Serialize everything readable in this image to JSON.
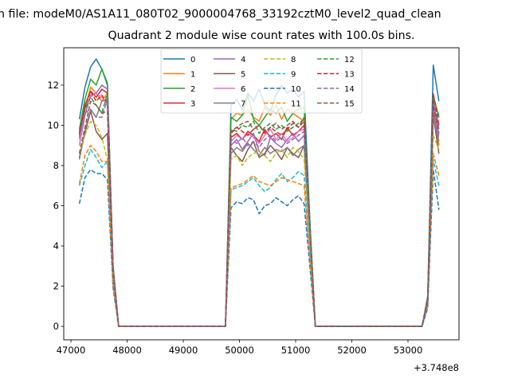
{
  "chart_data": {
    "type": "line",
    "suptitle": "n file: modeM0/AS1A11_080T02_9000004768_33192cztM0_level2_quad_clean",
    "title": "Quadrant 2 module wise count rates with 100.0s bins.",
    "xlabel": "",
    "ylabel": "",
    "x_offset_label": "+3.748e8",
    "xlim": [
      46872,
      53908
    ],
    "ylim": [
      -0.67,
      13.86
    ],
    "xticks": [
      47000,
      48000,
      49000,
      50000,
      51000,
      52000,
      53000
    ],
    "yticks": [
      0,
      2,
      4,
      6,
      8,
      10,
      12
    ],
    "grid": false,
    "legend_placement": "upper-center",
    "legend_columns": 4,
    "bins": {
      "start": 47150,
      "step": 100,
      "count": 65,
      "fill_value": 0
    },
    "nonzero_x": [
      47150,
      47250,
      47350,
      47450,
      47550,
      47650,
      47750,
      49850,
      49950,
      50050,
      50150,
      50250,
      50350,
      50450,
      50550,
      50650,
      50750,
      50850,
      50950,
      51050,
      51150,
      51250,
      53350,
      53450,
      53550
    ],
    "series": [
      {
        "name": "0",
        "color": "#1f77b4",
        "dashed": false,
        "values": [
          10.3,
          11.9,
          12.9,
          13.3,
          12.8,
          12.0,
          3.0,
          11.0,
          11.3,
          10.8,
          11.6,
          11.2,
          11.8,
          11.0,
          10.7,
          11.5,
          12.0,
          11.6,
          11.8,
          11.4,
          11.7,
          5.5,
          1.5,
          13.0,
          11.2
        ]
      },
      {
        "name": "1",
        "color": "#ff7f0e",
        "dashed": false,
        "values": [
          9.3,
          10.8,
          11.9,
          11.6,
          11.2,
          11.6,
          2.9,
          10.3,
          10.6,
          10.5,
          10.8,
          10.4,
          10.2,
          10.9,
          10.5,
          11.0,
          10.3,
          10.8,
          10.6,
          10.4,
          10.2,
          5.0,
          1.2,
          10.8,
          9.0
        ]
      },
      {
        "name": "2",
        "color": "#2ca02c",
        "dashed": false,
        "values": [
          9.8,
          11.3,
          12.3,
          12.0,
          12.8,
          12.1,
          3.0,
          10.4,
          10.2,
          10.5,
          11.5,
          10.3,
          10.0,
          10.4,
          10.8,
          10.6,
          10.9,
          10.2,
          10.6,
          10.8,
          10.9,
          5.3,
          1.4,
          11.5,
          10.4
        ]
      },
      {
        "name": "3",
        "color": "#d62728",
        "dashed": false,
        "values": [
          9.5,
          11.0,
          11.7,
          11.4,
          11.8,
          11.6,
          2.9,
          9.4,
          9.6,
          9.3,
          9.7,
          9.5,
          9.2,
          9.8,
          9.4,
          9.6,
          9.3,
          9.9,
          9.5,
          9.7,
          10.0,
          4.9,
          1.3,
          11.0,
          10.0
        ]
      },
      {
        "name": "4",
        "color": "#9467bd",
        "dashed": false,
        "values": [
          9.0,
          10.5,
          11.5,
          11.6,
          12.0,
          11.8,
          2.9,
          9.0,
          9.3,
          8.8,
          9.2,
          9.6,
          8.7,
          8.5,
          9.4,
          9.1,
          8.9,
          9.3,
          9.6,
          9.2,
          9.5,
          4.7,
          1.4,
          11.2,
          9.8
        ]
      },
      {
        "name": "5",
        "color": "#8c564b",
        "dashed": false,
        "values": [
          8.4,
          9.6,
          10.7,
          9.7,
          9.3,
          9.6,
          2.5,
          8.9,
          8.5,
          8.2,
          8.8,
          9.2,
          8.4,
          8.6,
          9.0,
          8.7,
          8.3,
          8.9,
          8.6,
          8.4,
          9.0,
          4.5,
          1.2,
          10.5,
          8.6
        ]
      },
      {
        "name": "6",
        "color": "#e377c2",
        "dashed": false,
        "values": [
          9.0,
          10.8,
          11.4,
          11.6,
          11.4,
          11.0,
          2.8,
          9.2,
          9.5,
          9.3,
          9.6,
          9.4,
          9.1,
          9.5,
          9.8,
          9.3,
          9.6,
          9.2,
          9.4,
          9.7,
          9.8,
          4.9,
          1.3,
          10.9,
          9.5
        ]
      },
      {
        "name": "7",
        "color": "#7f7f7f",
        "dashed": false,
        "values": [
          8.3,
          9.7,
          10.8,
          10.4,
          11.2,
          11.3,
          2.8,
          8.6,
          8.9,
          8.7,
          9.1,
          8.8,
          8.5,
          8.9,
          8.6,
          8.8,
          8.7,
          8.9,
          8.5,
          8.8,
          9.0,
          4.5,
          1.2,
          10.4,
          9.2
        ]
      },
      {
        "name": "8",
        "color": "#bcbd22",
        "dashed": true,
        "values": [
          8.6,
          9.5,
          10.2,
          10.0,
          9.4,
          8.3,
          2.2,
          8.3,
          8.5,
          8.0,
          8.4,
          8.6,
          8.7,
          8.5,
          8.2,
          8.6,
          8.8,
          8.4,
          8.9,
          8.7,
          8.3,
          4.3,
          1.1,
          9.5,
          8.8
        ]
      },
      {
        "name": "9",
        "color": "#17becf",
        "dashed": true,
        "values": [
          7.0,
          8.0,
          8.8,
          8.4,
          7.9,
          8.2,
          2.1,
          6.8,
          6.9,
          7.0,
          7.2,
          7.4,
          7.0,
          6.7,
          6.9,
          7.3,
          7.6,
          7.2,
          7.4,
          7.7,
          7.5,
          3.8,
          1.0,
          8.3,
          7.0
        ]
      },
      {
        "name": "10",
        "color": "#1f77b4",
        "dashed": true,
        "values": [
          6.1,
          7.4,
          7.8,
          7.6,
          7.6,
          7.3,
          1.9,
          5.9,
          6.2,
          6.1,
          6.4,
          6.3,
          5.6,
          6.0,
          6.1,
          6.4,
          6.2,
          6.0,
          6.3,
          6.5,
          6.1,
          3.1,
          0.9,
          7.8,
          5.8
        ]
      },
      {
        "name": "11",
        "color": "#ff7f0e",
        "dashed": true,
        "values": [
          7.1,
          8.5,
          9.0,
          8.7,
          8.2,
          8.2,
          2.1,
          6.9,
          7.0,
          7.1,
          7.3,
          7.5,
          7.2,
          7.1,
          7.0,
          7.2,
          7.4,
          7.3,
          7.2,
          7.1,
          7.0,
          3.5,
          1.0,
          8.6,
          7.5
        ]
      },
      {
        "name": "12",
        "color": "#2ca02c",
        "dashed": true,
        "values": [
          9.7,
          10.8,
          11.4,
          11.0,
          10.6,
          11.6,
          2.9,
          9.8,
          9.7,
          10.0,
          9.9,
          10.2,
          9.6,
          9.9,
          10.1,
          9.8,
          10.0,
          9.7,
          9.9,
          10.1,
          10.3,
          5.1,
          1.4,
          11.3,
          10.5
        ]
      },
      {
        "name": "13",
        "color": "#d62728",
        "dashed": true,
        "values": [
          9.6,
          10.9,
          11.7,
          11.2,
          11.5,
          11.1,
          2.8,
          9.6,
          9.9,
          9.7,
          9.5,
          9.8,
          10.0,
          9.6,
          9.9,
          9.7,
          9.5,
          9.8,
          10.1,
          9.9,
          10.2,
          5.1,
          1.3,
          11.6,
          10.0
        ]
      },
      {
        "name": "14",
        "color": "#9467bd",
        "dashed": true,
        "values": [
          9.4,
          10.6,
          10.8,
          10.4,
          10.4,
          11.3,
          2.8,
          9.3,
          9.1,
          9.4,
          9.0,
          9.2,
          8.9,
          9.3,
          9.5,
          9.2,
          9.4,
          9.1,
          9.3,
          9.5,
          9.7,
          4.9,
          1.2,
          10.8,
          9.3
        ]
      },
      {
        "name": "15",
        "color": "#8c564b",
        "dashed": true,
        "values": [
          8.6,
          9.9,
          11.2,
          11.0,
          10.6,
          10.7,
          2.7,
          9.7,
          9.9,
          10.1,
          10.2,
          9.8,
          10.0,
          9.7,
          9.9,
          10.1,
          9.8,
          10.0,
          10.2,
          9.9,
          10.4,
          5.2,
          1.3,
          11.0,
          9.6
        ]
      }
    ]
  }
}
